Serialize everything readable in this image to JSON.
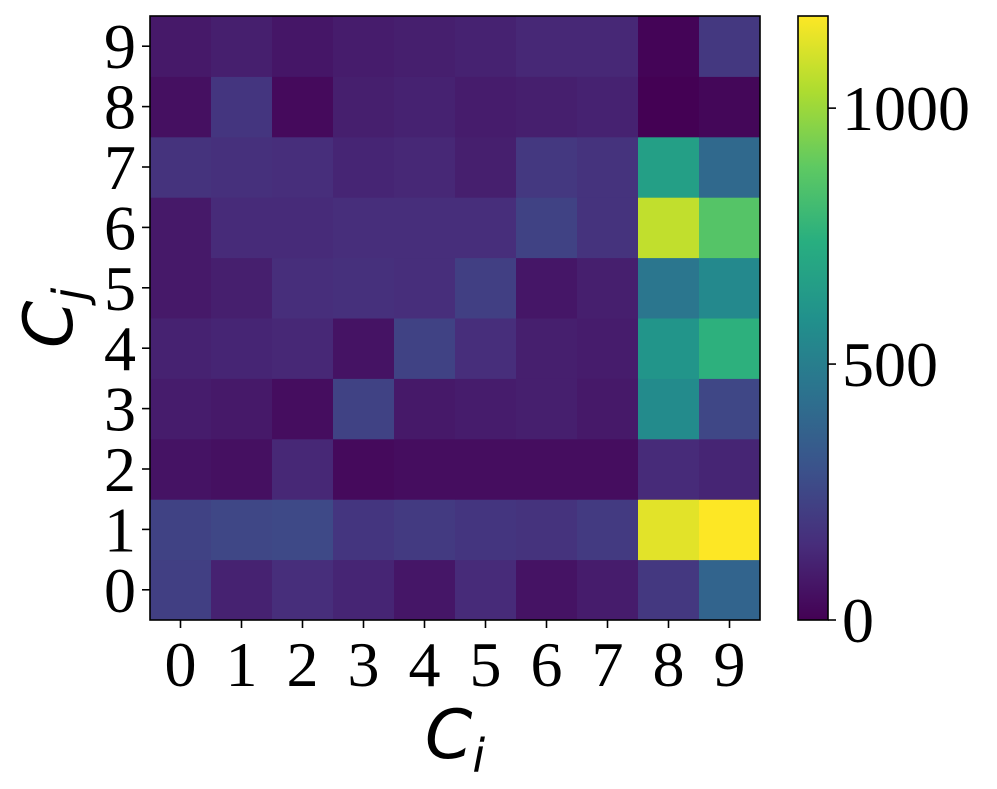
{
  "chart_data": {
    "type": "heatmap",
    "title": "",
    "x_categories": [
      "0",
      "1",
      "2",
      "3",
      "4",
      "5",
      "6",
      "7",
      "8",
      "9"
    ],
    "y_categories": [
      "0",
      "1",
      "2",
      "3",
      "4",
      "5",
      "6",
      "7",
      "8",
      "9"
    ],
    "xlabel": {
      "main": "C",
      "sub": "i"
    },
    "ylabel": {
      "main": "C",
      "sub": "j"
    },
    "colormap": "viridis",
    "color_range": [
      0,
      1180
    ],
    "colorbar_ticks": [
      0,
      500,
      1000
    ],
    "values": [
      [
        220,
        110,
        150,
        120,
        70,
        140,
        60,
        90,
        190,
        380
      ],
      [
        230,
        250,
        260,
        180,
        200,
        180,
        170,
        200,
        1130,
        1180
      ],
      [
        60,
        50,
        130,
        30,
        40,
        40,
        40,
        40,
        140,
        120
      ],
      [
        90,
        80,
        40,
        230,
        80,
        90,
        100,
        80,
        560,
        250
      ],
      [
        110,
        120,
        130,
        60,
        230,
        150,
        100,
        90,
        610,
        750
      ],
      [
        80,
        100,
        150,
        160,
        150,
        220,
        70,
        100,
        460,
        550
      ],
      [
        80,
        140,
        140,
        150,
        150,
        150,
        230,
        170,
        1070,
        860
      ],
      [
        170,
        160,
        150,
        120,
        130,
        100,
        190,
        170,
        660,
        400
      ],
      [
        50,
        180,
        30,
        100,
        110,
        90,
        100,
        110,
        0,
        20
      ],
      [
        80,
        100,
        70,
        90,
        100,
        110,
        130,
        130,
        10,
        190
      ]
    ]
  }
}
